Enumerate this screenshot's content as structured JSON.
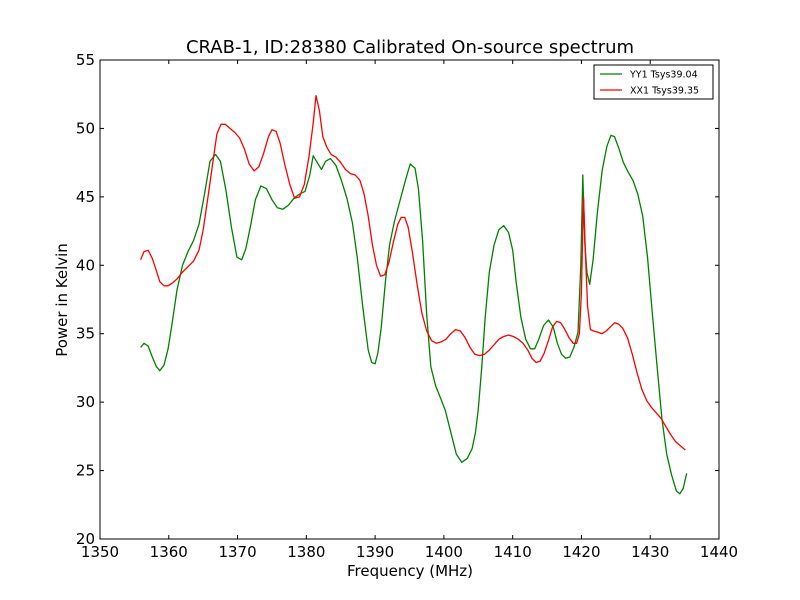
{
  "chart_data": {
    "type": "line",
    "title": "CRAB-1, ID:28380 Calibrated On-source spectrum",
    "xlabel": "Frequency (MHz)",
    "ylabel": "Power in Kelvin",
    "xlim": [
      1350,
      1440
    ],
    "ylim": [
      20,
      55
    ],
    "xticks": [
      1350,
      1360,
      1370,
      1380,
      1390,
      1400,
      1410,
      1420,
      1430,
      1440
    ],
    "yticks": [
      20,
      25,
      30,
      35,
      40,
      45,
      50,
      55
    ],
    "grid": false,
    "legend_position": "top-right",
    "series": [
      {
        "name": "YY1 Tsys39.04",
        "color": "#008000",
        "x": [
          1355.9,
          1356.4,
          1357.0,
          1357.6,
          1358.2,
          1358.7,
          1359.3,
          1359.9,
          1360.5,
          1361.2,
          1362.0,
          1362.8,
          1363.6,
          1364.4,
          1365.2,
          1366.0,
          1366.8,
          1367.5,
          1368.3,
          1369.1,
          1369.9,
          1370.6,
          1371.2,
          1371.9,
          1372.6,
          1373.4,
          1374.2,
          1375.0,
          1375.8,
          1376.6,
          1377.4,
          1378.2,
          1379.0,
          1379.8,
          1380.5,
          1381.0,
          1381.6,
          1382.2,
          1382.8,
          1383.5,
          1384.3,
          1385.1,
          1385.9,
          1386.7,
          1387.4,
          1388.2,
          1389.0,
          1389.5,
          1390.0,
          1390.4,
          1390.9,
          1391.5,
          1392.1,
          1392.8,
          1393.6,
          1394.4,
          1395.1,
          1395.8,
          1396.3,
          1396.9,
          1397.5,
          1398.1,
          1398.8,
          1399.5,
          1400.2,
          1401.0,
          1401.8,
          1402.6,
          1403.4,
          1404.1,
          1404.6,
          1405.0,
          1405.5,
          1406.0,
          1406.6,
          1407.3,
          1408.0,
          1408.7,
          1409.4,
          1410.0,
          1410.5,
          1411.2,
          1411.9,
          1412.6,
          1413.2,
          1413.8,
          1414.5,
          1415.2,
          1415.9,
          1416.5,
          1417.1,
          1417.7,
          1418.3,
          1418.9,
          1419.5,
          1419.9,
          1420.2,
          1420.5,
          1420.8,
          1421.2,
          1421.7,
          1422.3,
          1423.0,
          1423.7,
          1424.3,
          1424.8,
          1425.4,
          1426.1,
          1426.8,
          1427.5,
          1428.2,
          1428.9,
          1429.6,
          1430.3,
          1431.0,
          1431.7,
          1432.4,
          1433.1,
          1433.8,
          1434.3,
          1434.8,
          1435.3
        ],
        "y": [
          34.0,
          34.3,
          34.1,
          33.3,
          32.6,
          32.3,
          32.7,
          33.9,
          35.8,
          38.2,
          40.0,
          41.0,
          41.8,
          43.0,
          45.2,
          47.6,
          48.1,
          47.6,
          45.5,
          42.8,
          40.6,
          40.4,
          41.2,
          42.9,
          44.8,
          45.8,
          45.6,
          44.8,
          44.2,
          44.1,
          44.4,
          44.9,
          45.2,
          45.4,
          46.6,
          48.0,
          47.5,
          47.0,
          47.6,
          47.8,
          47.3,
          46.2,
          44.9,
          43.1,
          40.6,
          37.0,
          33.8,
          32.9,
          32.8,
          33.6,
          35.5,
          38.8,
          41.5,
          43.2,
          44.7,
          46.2,
          47.4,
          47.1,
          45.6,
          41.8,
          36.4,
          32.6,
          31.2,
          30.3,
          29.4,
          27.8,
          26.2,
          25.6,
          25.9,
          26.6,
          27.8,
          29.5,
          32.5,
          36.2,
          39.5,
          41.5,
          42.6,
          42.9,
          42.4,
          41.1,
          38.8,
          36.2,
          34.6,
          33.9,
          33.9,
          34.6,
          35.6,
          36.0,
          35.5,
          34.3,
          33.5,
          33.2,
          33.3,
          34.0,
          35.1,
          40.0,
          46.6,
          41.5,
          39.5,
          38.6,
          40.4,
          43.8,
          46.9,
          48.7,
          49.5,
          49.4,
          48.6,
          47.5,
          46.8,
          46.2,
          45.2,
          43.6,
          40.6,
          36.5,
          32.6,
          28.8,
          26.2,
          24.7,
          23.5,
          23.3,
          23.7,
          24.8
        ]
      },
      {
        "name": "XX1 Tsys39.35",
        "color": "#ff0000",
        "x": [
          1355.9,
          1356.4,
          1357.0,
          1357.6,
          1358.2,
          1358.7,
          1359.3,
          1359.9,
          1360.5,
          1361.2,
          1362.0,
          1362.8,
          1363.6,
          1364.4,
          1365.0,
          1365.7,
          1366.4,
          1367.0,
          1367.6,
          1368.2,
          1368.9,
          1369.6,
          1370.3,
          1371.0,
          1371.7,
          1372.4,
          1373.1,
          1373.8,
          1374.5,
          1375.0,
          1375.6,
          1376.2,
          1376.9,
          1377.6,
          1378.3,
          1379.0,
          1379.7,
          1380.4,
          1381.0,
          1381.4,
          1381.9,
          1382.4,
          1383.0,
          1383.6,
          1384.3,
          1385.0,
          1385.7,
          1386.4,
          1387.1,
          1387.8,
          1388.4,
          1389.0,
          1389.6,
          1390.2,
          1390.8,
          1391.4,
          1392.0,
          1392.7,
          1393.3,
          1393.8,
          1394.3,
          1394.8,
          1395.4,
          1396.1,
          1396.8,
          1397.5,
          1398.2,
          1398.9,
          1399.6,
          1400.3,
          1401.0,
          1401.7,
          1402.4,
          1403.1,
          1403.8,
          1404.5,
          1405.2,
          1405.9,
          1406.6,
          1407.3,
          1408.0,
          1408.7,
          1409.4,
          1410.1,
          1410.8,
          1411.5,
          1412.2,
          1412.8,
          1413.4,
          1414.0,
          1414.6,
          1415.2,
          1415.8,
          1416.4,
          1417.0,
          1417.6,
          1418.2,
          1418.8,
          1419.3,
          1419.7,
          1420.0,
          1420.3,
          1420.6,
          1420.9,
          1421.3,
          1421.8,
          1422.4,
          1423.0,
          1423.6,
          1424.2,
          1424.8,
          1425.4,
          1426.0,
          1426.7,
          1427.4,
          1428.1,
          1428.8,
          1429.5,
          1430.2,
          1430.9,
          1431.6,
          1432.3,
          1433.0,
          1433.7,
          1434.4,
          1435.1
        ],
        "y": [
          40.4,
          41.0,
          41.1,
          40.5,
          39.6,
          38.8,
          38.5,
          38.5,
          38.7,
          39.0,
          39.5,
          39.9,
          40.3,
          41.1,
          42.6,
          45.0,
          47.5,
          49.6,
          50.3,
          50.3,
          50.0,
          49.7,
          49.3,
          48.5,
          47.4,
          46.9,
          47.2,
          48.2,
          49.4,
          49.9,
          49.8,
          48.9,
          47.3,
          45.9,
          44.9,
          45.0,
          45.9,
          48.0,
          50.4,
          52.4,
          51.3,
          49.4,
          48.6,
          48.1,
          47.9,
          47.5,
          47.0,
          46.7,
          46.6,
          46.2,
          45.2,
          43.6,
          41.5,
          40.0,
          39.2,
          39.3,
          40.2,
          41.8,
          43.0,
          43.5,
          43.5,
          42.8,
          41.0,
          38.6,
          36.5,
          35.2,
          34.5,
          34.3,
          34.4,
          34.6,
          35.0,
          35.3,
          35.2,
          34.7,
          34.0,
          33.5,
          33.4,
          33.5,
          33.8,
          34.2,
          34.6,
          34.8,
          34.9,
          34.8,
          34.6,
          34.3,
          33.8,
          33.2,
          32.9,
          33.0,
          33.6,
          34.5,
          35.5,
          35.9,
          35.8,
          35.3,
          34.7,
          34.3,
          34.3,
          35.0,
          38.0,
          45.0,
          40.5,
          37.0,
          35.3,
          35.2,
          35.1,
          35.0,
          35.2,
          35.5,
          35.8,
          35.7,
          35.4,
          34.7,
          33.5,
          32.1,
          30.9,
          30.1,
          29.6,
          29.2,
          28.8,
          28.2,
          27.6,
          27.1,
          26.8,
          26.5
        ]
      }
    ]
  }
}
